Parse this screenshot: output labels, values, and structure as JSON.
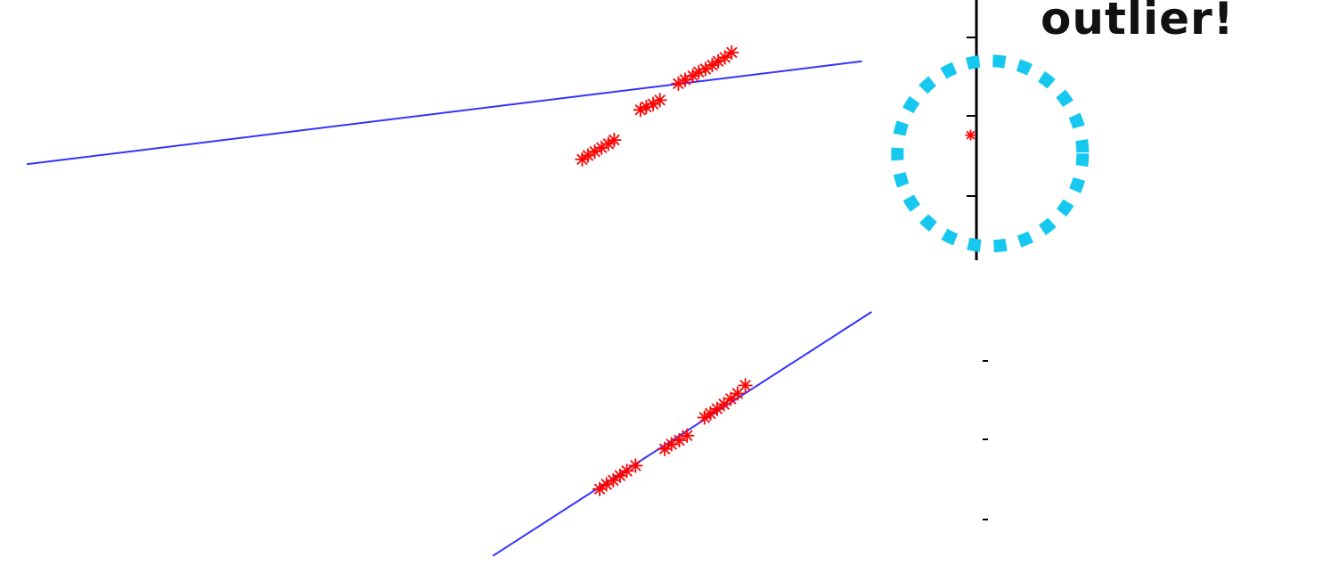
{
  "annotation": {
    "text": "outlier!"
  },
  "colors": {
    "fit_line": "#3333ff",
    "points": "#ff0000",
    "highlight_circle": "#16c8ef",
    "axis": "#000000"
  },
  "chart_data": [
    {
      "type": "scatter",
      "title": "",
      "xlabel": "",
      "ylabel": "",
      "grid": false,
      "legend": "none",
      "xlim": [
        0,
        10
      ],
      "ylim": [
        0,
        10
      ],
      "series": [
        {
          "kind": "points",
          "marker": "asterisk",
          "x": [
            5.72,
            5.78,
            5.85,
            5.92,
            5.99,
            6.05,
            6.32,
            6.38,
            6.45,
            6.52,
            6.71,
            6.78,
            6.86,
            6.92,
            6.99,
            7.06,
            7.12,
            7.19,
            7.26
          ],
          "y": [
            4.7,
            4.78,
            4.86,
            4.94,
            5.02,
            5.1,
            5.72,
            5.78,
            5.84,
            5.92,
            6.26,
            6.34,
            6.42,
            6.5,
            6.56,
            6.64,
            6.72,
            6.8,
            6.9
          ]
        },
        {
          "kind": "points",
          "marker": "asterisk",
          "role": "outlier",
          "x": [
            9.72
          ],
          "y": [
            5.2
          ]
        },
        {
          "kind": "fit-line",
          "x": [
            0,
            8.6
          ],
          "y": [
            4.6,
            6.72
          ]
        }
      ],
      "highlight": {
        "x": 9.92,
        "y": 4.82
      }
    },
    {
      "type": "scatter",
      "title": "",
      "xlabel": "",
      "ylabel": "",
      "grid": false,
      "legend": "none",
      "xlim": [
        0,
        10
      ],
      "ylim": [
        0,
        10
      ],
      "series": [
        {
          "kind": "points",
          "marker": "asterisk",
          "x": [
            5.9,
            5.97,
            6.04,
            6.11,
            6.18,
            6.27,
            6.57,
            6.64,
            6.72,
            6.8,
            6.98,
            7.04,
            7.11,
            7.18,
            7.25,
            7.32,
            7.4
          ],
          "y": [
            4.75,
            4.82,
            4.88,
            4.95,
            5.02,
            5.1,
            5.35,
            5.42,
            5.48,
            5.55,
            5.82,
            5.88,
            5.95,
            6.02,
            6.1,
            6.18,
            6.3
          ]
        },
        {
          "kind": "fit-line",
          "x": [
            4.8,
            8.7
          ],
          "y": [
            3.75,
            7.4
          ]
        }
      ]
    }
  ]
}
